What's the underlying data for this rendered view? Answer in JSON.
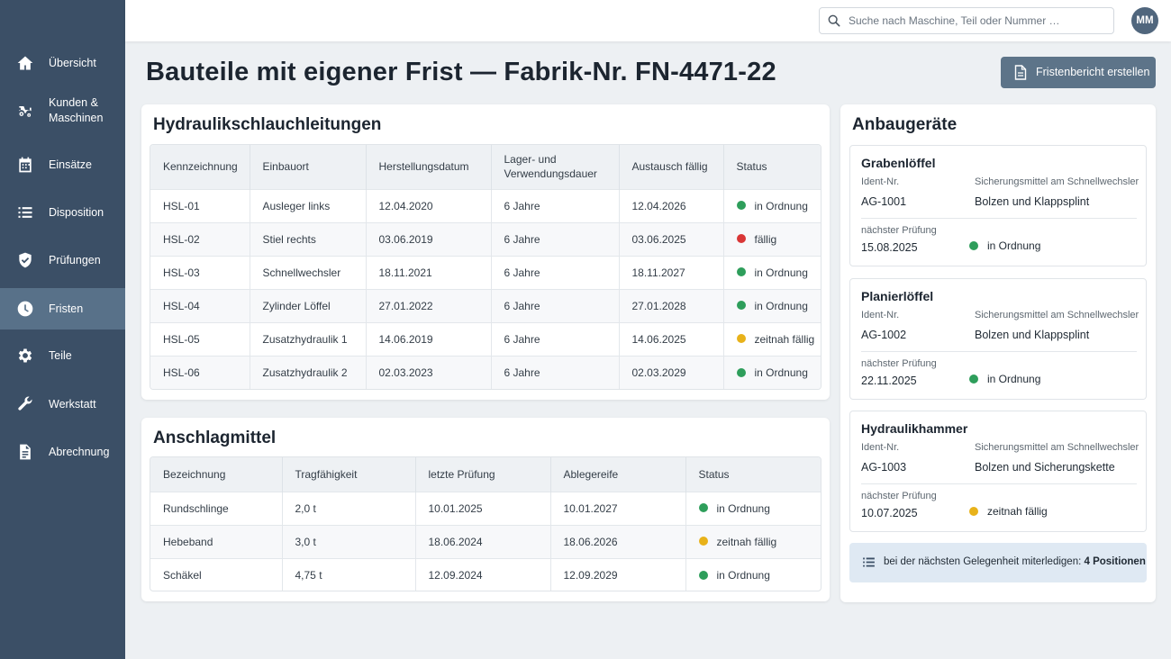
{
  "sidebar": {
    "items": [
      {
        "label": "Übersicht",
        "icon": "home-icon"
      },
      {
        "label": "Kunden &\nMaschinen",
        "label1": "Kunden &",
        "label2": "Maschinen",
        "icon": "tractor-icon"
      },
      {
        "label": "Einsätze",
        "icon": "calendar-icon"
      },
      {
        "label": "Disposition",
        "icon": "list-icon"
      },
      {
        "label": "Prüfungen",
        "icon": "shield-check-icon"
      },
      {
        "label": "Fristen",
        "icon": "clock-icon",
        "active": true
      },
      {
        "label": "Teile",
        "icon": "gear-icon"
      },
      {
        "label": "Werkstatt",
        "icon": "wrench-icon"
      },
      {
        "label": "Abrechnung",
        "icon": "document-icon"
      }
    ]
  },
  "topbar": {
    "search_placeholder": "Suche nach Maschine, Teil oder Nummer …",
    "avatar_initials": "MM"
  },
  "page": {
    "title": "Bauteile mit eigener Frist — Fabrik-Nr. FN-4471-22",
    "report_button": "Fristenbericht erstellen"
  },
  "colors": {
    "ok": "#2e9e5b",
    "due": "#d93636",
    "soon": "#e8b21a",
    "sidebar": "#3b4f66",
    "sidebar_active": "#587189",
    "button": "#5d7489"
  },
  "hoses": {
    "title": "Hydraulikschlauchleitungen",
    "columns": [
      "Kennzeichnung",
      "Einbauort",
      "Herstellungsdatum",
      "Lager- und Verwendungsdauer",
      "Austausch fällig",
      "Status"
    ],
    "rows": [
      [
        "HSL-01",
        "Ausleger links",
        "12.04.2020",
        "6 Jahre",
        "12.04.2026",
        "in Ordnung"
      ],
      [
        "HSL-02",
        "Stiel rechts",
        "03.06.2019",
        "6 Jahre",
        "03.06.2025",
        "fällig"
      ],
      [
        "HSL-03",
        "Schnellwechsler",
        "18.11.2021",
        "6 Jahre",
        "18.11.2027",
        "in Ordnung"
      ],
      [
        "HSL-04",
        "Zylinder Löffel",
        "27.01.2022",
        "6 Jahre",
        "27.01.2028",
        "in Ordnung"
      ],
      [
        "HSL-05",
        "Zusatzhydraulik 1",
        "14.06.2019",
        "6 Jahre",
        "14.06.2025",
        "zeitnah fällig"
      ],
      [
        "HSL-06",
        "Zusatzhydraulik 2",
        "02.03.2023",
        "6 Jahre",
        "02.03.2029",
        "in Ordnung"
      ]
    ],
    "status_colors": [
      "ok",
      "due",
      "ok",
      "ok",
      "soon",
      "ok"
    ]
  },
  "slings": {
    "title": "Anschlagmittel",
    "columns": [
      "Bezeichnung",
      "Tragfähigkeit",
      "letzte Prüfung",
      "Ablegereife",
      "Status"
    ],
    "rows": [
      [
        "Rundschlinge",
        "2,0 t",
        "10.01.2025",
        "10.01.2027",
        "in Ordnung"
      ],
      [
        "Hebeband",
        "3,0 t",
        "18.06.2024",
        "18.06.2026",
        "zeitnah fällig"
      ],
      [
        "Schäkel",
        "4,75 t",
        "12.09.2024",
        "12.09.2029",
        "in Ordnung"
      ]
    ],
    "status_colors": [
      "ok",
      "soon",
      "ok"
    ]
  },
  "attachments": {
    "title": "Anbaugeräte",
    "ident_label": "Ident-Nr.",
    "secure_label": "Sicherungsmittel am Schnellwechsler",
    "next_label": "nächster Prüfung",
    "items": [
      {
        "name": "Grabenlöffel",
        "ident": "AG-1001",
        "secure": "Bolzen und Klappsplint",
        "next": "15.08.2025",
        "status": "in Ordnung",
        "status_color": "ok"
      },
      {
        "name": "Planierlöffel",
        "ident": "AG-1002",
        "secure": "Bolzen und Klappsplint",
        "next": "22.11.2025",
        "status": "in Ordnung",
        "status_color": "ok"
      },
      {
        "name": "Hydraulikhammer",
        "ident": "AG-1003",
        "secure": "Bolzen und Sicherungskette",
        "next": "10.07.2025",
        "status": "zeitnah fällig",
        "status_color": "soon"
      }
    ],
    "note_text": "bei der nächsten Gelegenheit miterledigen: ",
    "note_count": "4 Positionen"
  }
}
